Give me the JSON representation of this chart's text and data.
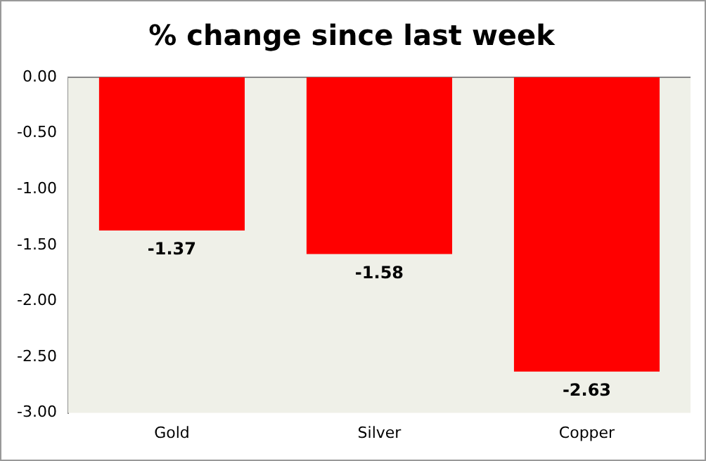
{
  "chart_data": {
    "type": "bar",
    "title": "% change since last week",
    "categories": [
      "Gold",
      "Silver",
      "Copper"
    ],
    "values": [
      -1.37,
      -1.58,
      -2.63
    ],
    "color": "#ff0000",
    "ylim": [
      -3,
      0
    ],
    "yticks": [
      {
        "value": 0,
        "label": "0.00"
      },
      {
        "value": -0.5,
        "label": "-0.50"
      },
      {
        "value": -1,
        "label": "-1.00"
      },
      {
        "value": -1.5,
        "label": "-1.50"
      },
      {
        "value": -2,
        "label": "-2.00"
      },
      {
        "value": -2.5,
        "label": "-2.50"
      },
      {
        "value": -3,
        "label": "-3.00"
      }
    ],
    "grid": false,
    "legend": false,
    "data_labels": true
  }
}
